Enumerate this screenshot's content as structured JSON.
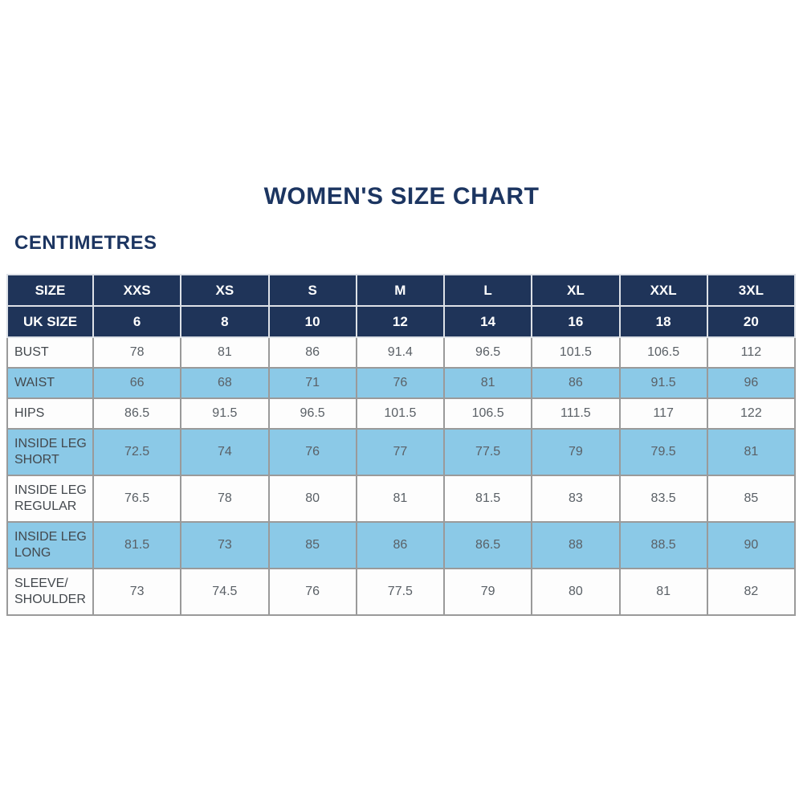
{
  "page": {
    "title": "WOMEN'S SIZE CHART",
    "subtitle": "CENTIMETRES"
  },
  "colors": {
    "navy": "#1f3459",
    "light_blue": "#8bc9e7",
    "border_gray": "#9a9a9a",
    "header_border": "#dde1e7",
    "title_text": "#1c3561",
    "label_text": "#43484d",
    "value_text": "#5a6066",
    "header_text": "#ffffff",
    "page_bg": "#ffffff"
  },
  "chart_data": {
    "type": "table",
    "title": "WOMEN'S SIZE CHART",
    "units": "CENTIMETRES",
    "columns": [
      "SIZE",
      "XXS",
      "XS",
      "S",
      "M",
      "L",
      "XL",
      "XXL",
      "3XL"
    ],
    "uk_sizes": [
      "6",
      "8",
      "10",
      "12",
      "14",
      "16",
      "18",
      "20"
    ],
    "rows": [
      {
        "label": "BUST",
        "values": [
          "78",
          "81",
          "86",
          "91.4",
          "96.5",
          "101.5",
          "106.5",
          "112"
        ]
      },
      {
        "label": "WAIST",
        "values": [
          "66",
          "68",
          "71",
          "76",
          "81",
          "86",
          "91.5",
          "96"
        ]
      },
      {
        "label": "HIPS",
        "values": [
          "86.5",
          "91.5",
          "96.5",
          "101.5",
          "106.5",
          "111.5",
          "117",
          "122"
        ]
      },
      {
        "label": "INSIDE LEG SHORT",
        "values": [
          "72.5",
          "74",
          "76",
          "77",
          "77.5",
          "79",
          "79.5",
          "81"
        ]
      },
      {
        "label": "INSIDE LEG REGULAR",
        "values": [
          "76.5",
          "78",
          "80",
          "81",
          "81.5",
          "83",
          "83.5",
          "85"
        ]
      },
      {
        "label": "INSIDE LEG LONG",
        "values": [
          "81.5",
          "73",
          "85",
          "86",
          "86.5",
          "88",
          "88.5",
          "90"
        ]
      },
      {
        "label": "SLEEVE/ SHOULDER",
        "values": [
          "73",
          "74.5",
          "76",
          "77.5",
          "79",
          "80",
          "81",
          "82"
        ]
      }
    ]
  },
  "table": {
    "header_rows": [
      {
        "label": "SIZE",
        "values": [
          "XXS",
          "XS",
          "S",
          "M",
          "L",
          "XL",
          "XXL",
          "3XL"
        ]
      },
      {
        "label": "UK SIZE",
        "values": [
          "6",
          "8",
          "10",
          "12",
          "14",
          "16",
          "18",
          "20"
        ]
      }
    ],
    "rows": [
      {
        "label": "BUST",
        "values": [
          "78",
          "81",
          "86",
          "91.4",
          "96.5",
          "101.5",
          "106.5",
          "112"
        ],
        "highlight": false
      },
      {
        "label": "WAIST",
        "values": [
          "66",
          "68",
          "71",
          "76",
          "81",
          "86",
          "91.5",
          "96"
        ],
        "highlight": true
      },
      {
        "label": "HIPS",
        "values": [
          "86.5",
          "91.5",
          "96.5",
          "101.5",
          "106.5",
          "111.5",
          "117",
          "122"
        ],
        "highlight": false
      },
      {
        "label": "INSIDE LEG SHORT",
        "values": [
          "72.5",
          "74",
          "76",
          "77",
          "77.5",
          "79",
          "79.5",
          "81"
        ],
        "highlight": true
      },
      {
        "label": "INSIDE LEG REGULAR",
        "values": [
          "76.5",
          "78",
          "80",
          "81",
          "81.5",
          "83",
          "83.5",
          "85"
        ],
        "highlight": false
      },
      {
        "label": "INSIDE LEG LONG",
        "values": [
          "81.5",
          "73",
          "85",
          "86",
          "86.5",
          "88",
          "88.5",
          "90"
        ],
        "highlight": true
      },
      {
        "label": "SLEEVE/ SHOULDER",
        "values": [
          "73",
          "74.5",
          "76",
          "77.5",
          "79",
          "80",
          "81",
          "82"
        ],
        "highlight": false
      }
    ]
  }
}
